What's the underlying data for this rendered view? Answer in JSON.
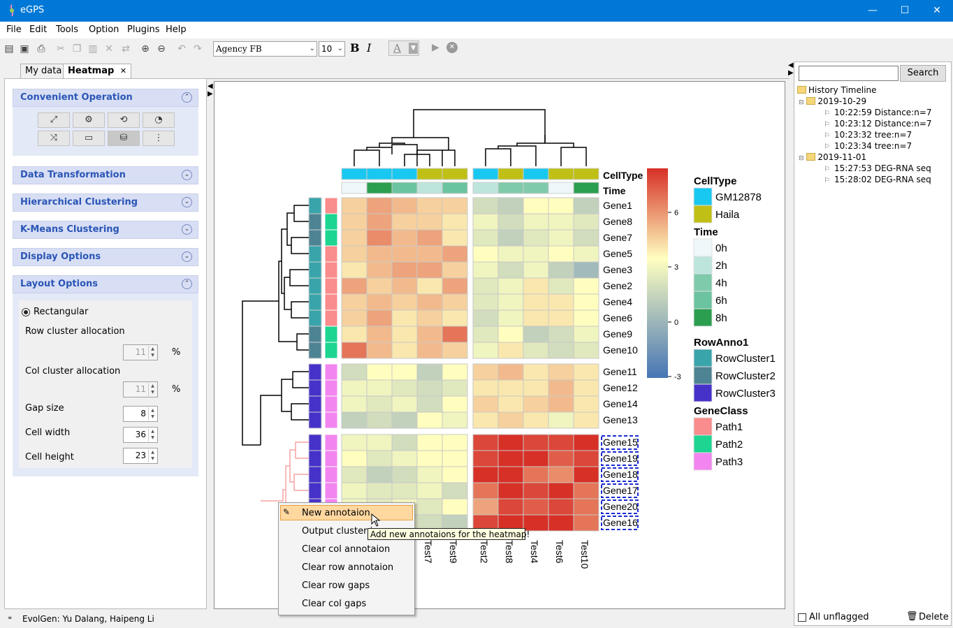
{
  "window": {
    "title": "eGPS",
    "minimize": "—",
    "maximize": "☐",
    "close": "✕"
  },
  "menu": [
    "File",
    "Edit",
    "Tools",
    "Option",
    "Plugins",
    "Help"
  ],
  "toolbar": {
    "font_family": "Agency FB",
    "font_size": "10",
    "bold": "B",
    "italic": "I",
    "color_button": "A"
  },
  "tabs": [
    {
      "label": "My data"
    },
    {
      "label": "Heatmap",
      "close": "✕"
    }
  ],
  "left_panel": {
    "sections": [
      {
        "label": "Convenient Operation",
        "state": "expanded"
      },
      {
        "label": "Data Transformation",
        "state": "collapsed"
      },
      {
        "label": "Hierarchical Clustering",
        "state": "collapsed"
      },
      {
        "label": "K-Means Clustering",
        "state": "collapsed"
      },
      {
        "label": "Display Options",
        "state": "collapsed"
      },
      {
        "label": "Layout Options",
        "state": "expanded"
      }
    ],
    "layout": {
      "shape_option": "Rectangular",
      "row_cluster_label": "Row cluster allocation",
      "row_cluster_value": "11",
      "col_cluster_label": "Col cluster allocation",
      "col_cluster_value": "11",
      "percent": "%",
      "gap_label": "Gap size",
      "gap_value": "8",
      "cell_width_label": "Cell width",
      "cell_width_value": "36",
      "cell_height_label": "Cell height",
      "cell_height_value": "23"
    }
  },
  "right_panel": {
    "search_button": "Search",
    "search_value": "",
    "tree_root": "History Timeline",
    "groups": [
      {
        "date": "2019-10-29",
        "items": [
          "10:22:59 Distance:n=7",
          "10:23:12 Distance:n=7",
          "10:23:32 tree:n=7",
          "10:23:34 tree:n=7"
        ]
      },
      {
        "date": "2019-11-01",
        "items": [
          "15:27:53 DEG-RNA seq",
          "15:28:02 DEG-RNA seq"
        ]
      }
    ],
    "flag_label": "All unflagged",
    "delete_label": "Delete"
  },
  "status": "EvolGen: Yu Dalang, Haipeng Li",
  "context_menu": {
    "items": [
      "New annotaion",
      "Output cluster in",
      "Clear col annotaion",
      "Clear row annotaion",
      "Clear row gaps",
      "Clear col gaps"
    ],
    "selected": 0,
    "tooltip": "Add new annotaions for the heatmap!"
  },
  "chart_data": {
    "type": "heatmap",
    "col_annotation_labels": [
      "CellType",
      "Time"
    ],
    "visible_column_labels": [
      "Test7",
      "Test9",
      "Test2",
      "Test8",
      "Test4",
      "Test6",
      "Test10"
    ],
    "row_labels": [
      "Gene1",
      "Gene8",
      "Gene7",
      "Gene5",
      "Gene3",
      "Gene2",
      "Gene4",
      "Gene6",
      "Gene9",
      "Gene10",
      "Gene11",
      "Gene12",
      "Gene14",
      "Gene13",
      "Gene15",
      "Gene19",
      "Gene18",
      "Gene17",
      "Gene20",
      "Gene16"
    ],
    "highlighted_rows": [
      "Gene15",
      "Gene19",
      "Gene18",
      "Gene17",
      "Gene20",
      "Gene16"
    ],
    "celltype_annotation": [
      "GM12878",
      "GM12878",
      "GM12878",
      "Haila",
      "Haila",
      "GM12878",
      "Haila",
      "GM12878",
      "Haila",
      "Haila"
    ],
    "time_annotation": [
      "0h",
      "8h",
      "6h",
      "2h",
      "6h",
      "2h",
      "4h",
      "4h",
      "0h",
      "8h"
    ],
    "row_anno1": [
      "RowCluster1",
      "RowCluster2",
      "RowCluster2",
      "RowCluster1",
      "RowCluster1",
      "RowCluster1",
      "RowCluster1",
      "RowCluster1",
      "RowCluster2",
      "RowCluster2",
      "RowCluster3",
      "RowCluster3",
      "RowCluster3",
      "RowCluster3",
      "RowCluster3",
      "RowCluster3",
      "RowCluster3",
      "RowCluster3",
      "RowCluster3",
      "RowCluster3"
    ],
    "gene_class": [
      "Path1",
      "Path2",
      "Path2",
      "Path1",
      "Path1",
      "Path1",
      "Path1",
      "Path1",
      "Path2",
      "Path2",
      "Path3",
      "Path3",
      "Path3",
      "Path3",
      "Path3",
      "Path3",
      "Path3",
      "Path3",
      "Path3",
      "Path3"
    ],
    "values": [
      [
        4,
        5,
        4.5,
        4,
        4,
        1.5,
        1,
        3,
        3,
        1
      ],
      [
        4,
        5,
        4,
        4,
        3.5,
        2.5,
        1.5,
        2.5,
        2.5,
        2
      ],
      [
        4,
        5.5,
        4.5,
        5,
        3.5,
        2,
        1,
        2,
        2.5,
        1.5
      ],
      [
        4,
        4.5,
        4.5,
        4.5,
        5,
        3,
        2.5,
        2.5,
        3,
        2.5
      ],
      [
        3.5,
        4.5,
        5,
        5,
        4,
        2.5,
        1.5,
        2.5,
        1,
        0
      ],
      [
        5,
        4,
        4.5,
        3.5,
        5,
        2,
        2.5,
        3.5,
        2,
        3
      ],
      [
        4,
        4.5,
        4,
        4.5,
        4,
        2,
        2.5,
        3.5,
        3.5,
        3
      ],
      [
        4,
        5,
        3.5,
        4,
        3.5,
        1.5,
        2.5,
        3.5,
        3.5,
        3
      ],
      [
        3.5,
        4.5,
        3.5,
        4.5,
        6,
        2,
        3,
        1,
        1.5,
        2.5
      ],
      [
        6,
        4.5,
        3.5,
        4.5,
        4,
        2.5,
        3.5,
        2,
        1.5,
        2
      ],
      [
        1.5,
        3,
        3,
        1,
        3,
        4,
        4.5,
        3.5,
        4,
        3.5
      ],
      [
        2.5,
        2.5,
        2,
        1.5,
        2,
        3.5,
        3.5,
        3.5,
        4.5,
        3.5
      ],
      [
        2.5,
        2,
        2.5,
        1.5,
        3,
        4,
        3.5,
        4,
        4.5,
        3.5
      ],
      [
        1,
        1.5,
        1,
        3,
        2.5,
        3.5,
        4,
        3.5,
        2.5,
        3.5
      ],
      [
        2.5,
        2.5,
        1.5,
        3,
        3,
        7,
        7.5,
        7,
        7,
        7.5
      ],
      [
        3,
        2,
        2.5,
        3,
        3,
        7,
        7.5,
        7.5,
        6.5,
        7
      ],
      [
        2,
        1,
        1.5,
        2.5,
        3,
        7.5,
        7.5,
        6,
        5.5,
        7.5
      ],
      [
        2.5,
        2,
        2,
        2.5,
        1.5,
        6,
        7.5,
        7,
        7.5,
        6
      ],
      [
        2.5,
        2,
        2.5,
        2,
        3,
        5,
        7,
        6.5,
        7,
        6
      ],
      [
        2,
        2,
        2,
        1.5,
        1,
        7,
        7.5,
        7.5,
        7.5,
        6
      ]
    ],
    "color_scale": {
      "ticks": [
        "6",
        "3",
        "0",
        "-3"
      ],
      "low": "#4575b4",
      "mid": "#ffffbf",
      "high": "#d73027"
    },
    "legend": {
      "CellType": {
        "title": "CellType",
        "entries": [
          [
            "GM12878",
            "#19c8f0"
          ],
          [
            "Haila",
            "#bfbf16"
          ]
        ]
      },
      "Time": {
        "title": "Time",
        "entries": [
          [
            "0h",
            "#eef7f9"
          ],
          [
            "2h",
            "#bde5dc"
          ],
          [
            "4h",
            "#7fcaaa"
          ],
          [
            "6h",
            "#6bc3a0"
          ],
          [
            "8h",
            "#2b9e50"
          ]
        ]
      },
      "RowAnno1": {
        "title": "RowAnno1",
        "entries": [
          [
            "RowCluster1",
            "#3aa4ab"
          ],
          [
            "RowCluster2",
            "#4e8393"
          ],
          [
            "RowCluster3",
            "#4632c9"
          ]
        ]
      },
      "GeneClass": {
        "title": "GeneClass",
        "entries": [
          [
            "Path1",
            "#f98c8c"
          ],
          [
            "Path2",
            "#1dd490"
          ],
          [
            "Path3",
            "#f285ef"
          ]
        ]
      }
    }
  }
}
